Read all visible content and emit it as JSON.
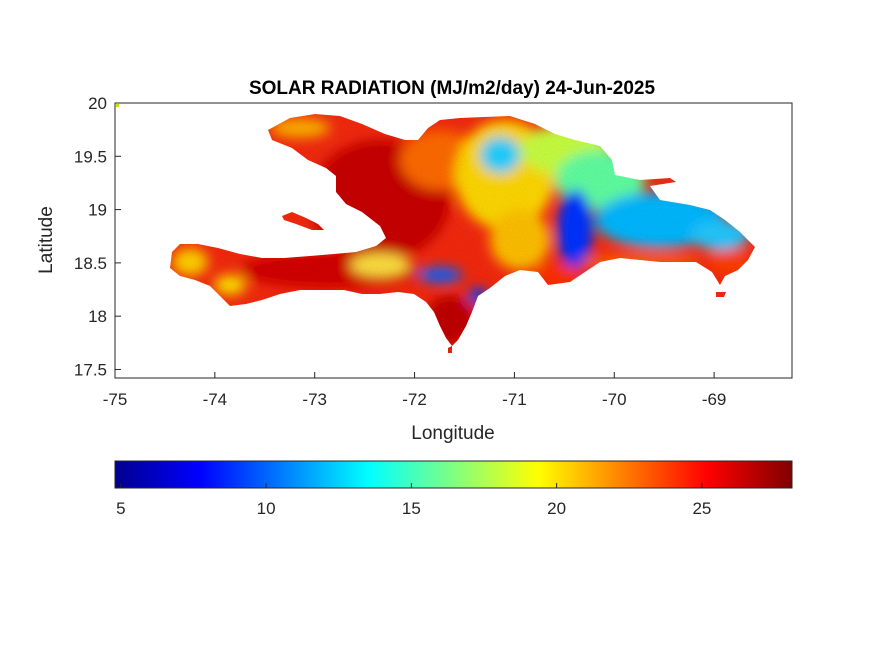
{
  "figure": {
    "title": "SOLAR RADIATION (MJ/m2/day) 24-Jun-2025"
  },
  "chart_data": {
    "type": "heatmap",
    "title": "SOLAR RADIATION (MJ/m2/day) 24-Jun-2025",
    "xlabel": "Longitude",
    "ylabel": "Latitude",
    "xlim": [
      -75,
      -68.22
    ],
    "ylim": [
      17.42,
      20
    ],
    "x_ticks": [
      "-75",
      "-74",
      "-73",
      "-72",
      "-71",
      "-70",
      "-69"
    ],
    "y_ticks": [
      "20",
      "19.5",
      "19",
      "18.5",
      "18",
      "17.5"
    ],
    "colorbar": {
      "colormap": "jet",
      "range": [
        4.8,
        28.1
      ],
      "ticks": [
        "5",
        "10",
        "15",
        "20",
        "25"
      ],
      "placement": "bottom"
    },
    "grid": false,
    "regions": [
      {
        "name": "",
        "lon": [
          -72.9,
          -72.0
        ],
        "lat": [
          18.6,
          19.8
        ],
        "value": 26
      },
      {
        "name": "",
        "lon": [
          -74.4,
          -72.5
        ],
        "lat": [
          18.2,
          18.6
        ],
        "value": 25
      },
      {
        "name": "",
        "lon": [
          -72.0,
          -71.3
        ],
        "lat": [
          17.7,
          18.3
        ],
        "value": 26
      },
      {
        "name": "",
        "lon": [
          -71.2,
          -70.6
        ],
        "lat": [
          19.1,
          19.8
        ],
        "value": 17
      },
      {
        "name": "",
        "lon": [
          -70.6,
          -70.2
        ],
        "lat": [
          18.3,
          19.1
        ],
        "value": 9
      },
      {
        "name": "",
        "lon": [
          -70.0,
          -68.8
        ],
        "lat": [
          18.5,
          19.1
        ],
        "value": 13
      },
      {
        "name": "",
        "lon": [
          -70.5,
          -69.4
        ],
        "lat": [
          19.1,
          19.5
        ],
        "value": 15
      },
      {
        "name": "",
        "lon": [
          -70.0,
          -68.6
        ],
        "lat": [
          18.2,
          18.5
        ],
        "value": 24
      },
      {
        "name": "",
        "lon": [
          -71.6,
          -71.3
        ],
        "lat": [
          18.1,
          18.4
        ],
        "value": 10
      }
    ]
  }
}
